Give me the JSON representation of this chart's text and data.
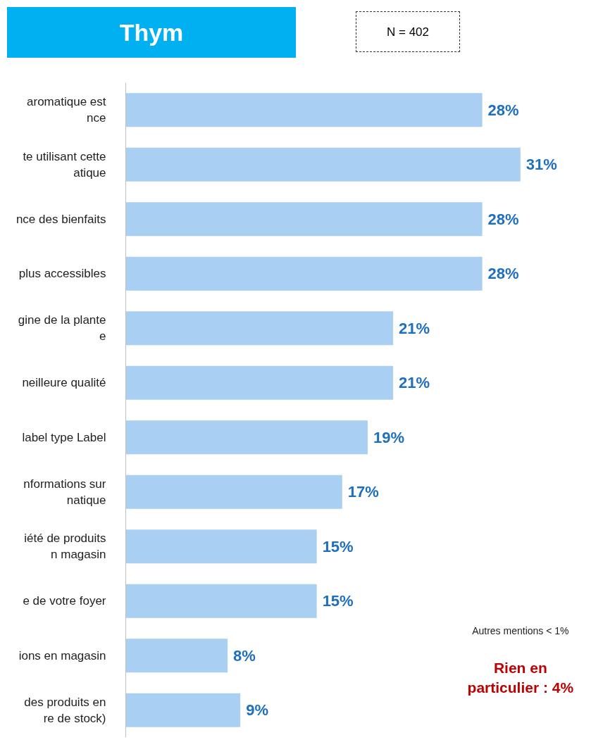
{
  "chart_data": {
    "type": "bar",
    "orientation": "horizontal",
    "title": "Thym",
    "subtitle": "N = 402",
    "categories": [
      "aromatique est\nnce",
      "te utilisant cette\natique",
      "nce des bienfaits",
      "plus accessibles",
      "gine de la plante\ne",
      "neilleure qualité",
      "label type Label",
      "nformations sur\nnatique",
      "iété de produits\nn magasin",
      "e de votre foyer",
      "ions en magasin",
      "des produits en\nre de stock)"
    ],
    "values": [
      28,
      31,
      28,
      28,
      21,
      21,
      19,
      17,
      15,
      15,
      8,
      9
    ],
    "color": "#a9cff2",
    "value_labels": [
      "28%",
      "31%",
      "28%",
      "28%",
      "21%",
      "21%",
      "19%",
      "17%",
      "15%",
      "15%",
      "8%",
      "9%"
    ],
    "tick_labels": "y",
    "grid": false,
    "annotations": [
      "Autres mentions < 1%",
      "Rien en\nparticulier : 4%"
    ]
  }
}
